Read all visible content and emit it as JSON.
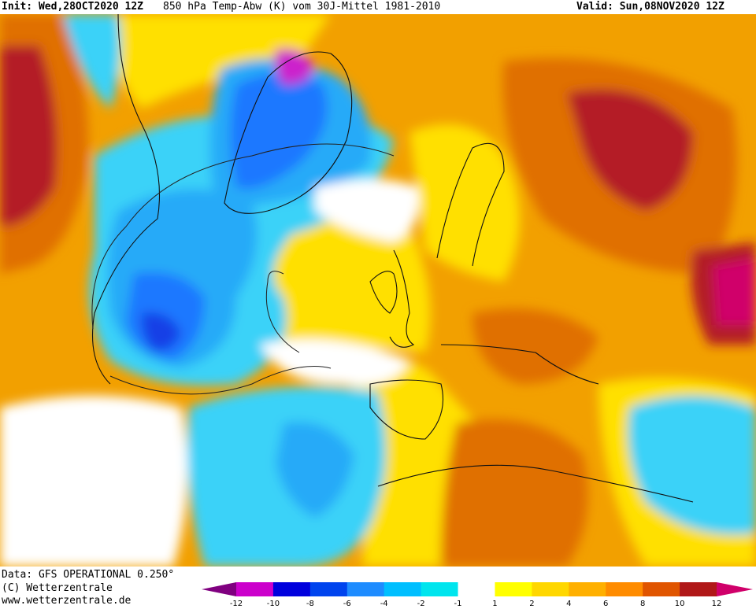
{
  "header": {
    "init": "Init: Wed,28OCT2020 12Z",
    "title": "850 hPa Temp-Abw (K) vom 30J-Mittel 1981-2010",
    "valid": "Valid: Sun,08NOV2020 12Z"
  },
  "credits": {
    "data": "Data: GFS OPERATIONAL 0.250°",
    "copyright": "(C) Wetterzentrale",
    "url": "www.wetterzentrale.de"
  },
  "legend": {
    "tick_labels": [
      "-12",
      "-10",
      "-8",
      "-6",
      "-4",
      "-2",
      "-1",
      "1",
      "2",
      "4",
      "6",
      "8",
      "10",
      "12"
    ],
    "bins": [
      {
        "color": "#800080"
      },
      {
        "color": "#cc00cc"
      },
      {
        "color": "#0000dd"
      },
      {
        "color": "#0044ee"
      },
      {
        "color": "#1e8cff"
      },
      {
        "color": "#00bfff"
      },
      {
        "color": "#00e5ee"
      },
      {
        "color": "#ffffff"
      },
      {
        "color": "#ffff00"
      },
      {
        "color": "#ffd700"
      },
      {
        "color": "#ffb000"
      },
      {
        "color": "#ff8c00"
      },
      {
        "color": "#e05500"
      },
      {
        "color": "#b01818"
      },
      {
        "color": "#d0006a"
      }
    ]
  },
  "map": {
    "variable": "850 hPa temperature anomaly",
    "colors": {
      "deep_orange": "#e07000",
      "orange": "#f2a000",
      "light_orange": "#ffc000",
      "yellow": "#ffe000",
      "red": "#b41c28",
      "magenta": "#d0006a",
      "white": "#ffffff",
      "cyan": "#3ad2f8",
      "light_blue": "#28aaf8",
      "blue": "#1e78ff",
      "dark_blue": "#1440e6",
      "purple": "#cc22cc"
    }
  }
}
